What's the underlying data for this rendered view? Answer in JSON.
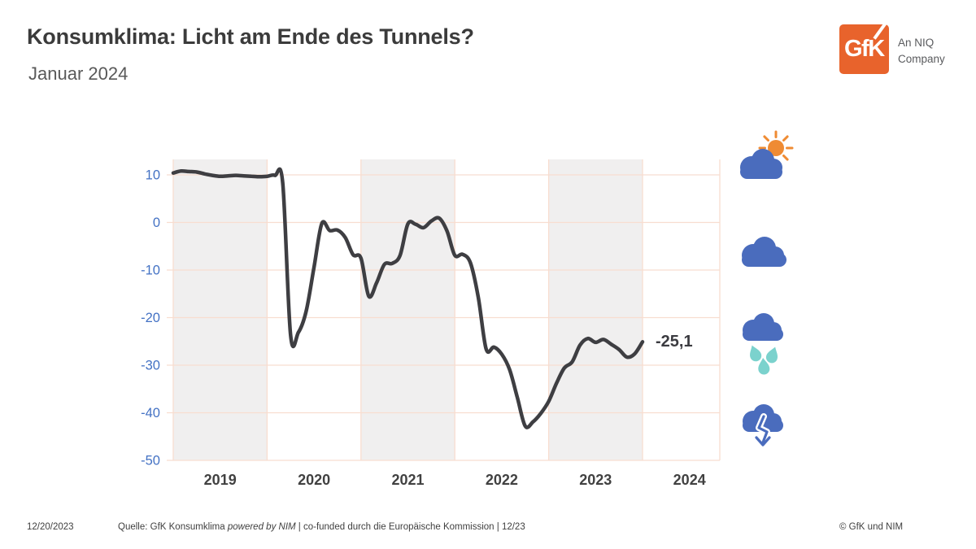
{
  "header": {
    "title": "Konsumklima: Licht am Ende des Tunnels?",
    "subtitle": "Januar 2024"
  },
  "logo": {
    "text": "GfK",
    "tagline_line1": "An NIQ",
    "tagline_line2": "Company",
    "orange": "#e8632c",
    "tagline_color": "#5a5b5e"
  },
  "chart_data": {
    "type": "line",
    "title": "",
    "xlabel": "",
    "ylabel": "",
    "frequency": "monthly",
    "x_start": "2019-01",
    "x_end": "2024-01",
    "x_labels": [
      "2019",
      "2020",
      "2021",
      "2022",
      "2023",
      "2024"
    ],
    "y_ticks": [
      10,
      0,
      -10,
      -20,
      -30,
      -40,
      -50
    ],
    "ylim": [
      -50,
      13
    ],
    "grid": "on",
    "shaded_years": [
      "2019",
      "2021",
      "2023"
    ],
    "series": [
      {
        "name": "GfK Konsumklima",
        "values": [
          10.4,
          10.8,
          10.7,
          10.6,
          10.2,
          9.9,
          9.7,
          9.8,
          9.9,
          9.8,
          9.7,
          9.6,
          9.7,
          9.9,
          8.3,
          -23.7,
          -23.1,
          -18.6,
          -9.4,
          -0.2,
          -1.7,
          -1.6,
          -3.2,
          -6.8,
          -7.5,
          -15.5,
          -12.7,
          -8.8,
          -8.6,
          -6.9,
          -0.3,
          -0.4,
          -1.1,
          0.3,
          0.9,
          -1.8,
          -6.9,
          -6.7,
          -8.5,
          -15.7,
          -26.6,
          -26.2,
          -27.7,
          -30.9,
          -36.8,
          -42.8,
          -41.9,
          -40.1,
          -37.6,
          -33.8,
          -30.6,
          -29.3,
          -25.8,
          -24.4,
          -25.2,
          -24.6,
          -25.6,
          -26.7,
          -28.3,
          -27.6,
          -25.1
        ]
      }
    ],
    "end_label": "-25,1",
    "line_color": "#3e3e42",
    "gridline_color": "#f8ddd0",
    "band_color": "#f0efef",
    "y_tick_color": "#4472c4",
    "x_tick_color": "#414141"
  },
  "weather_icons": [
    {
      "name": "partly-sunny-icon",
      "cloud_color": "#4a6cbd",
      "sun_color": "#ef8b33"
    },
    {
      "name": "cloudy-icon",
      "cloud_color": "#4a6cbd"
    },
    {
      "name": "rain-icon",
      "cloud_color": "#4a6cbd",
      "drop_color": "#7bd2cd"
    },
    {
      "name": "downturn-cloud-icon",
      "cloud_color": "#4a6cbd",
      "arrow_color": "#4a6cbd"
    }
  ],
  "footer": {
    "date": "12/20/2023",
    "source_prefix": "Quelle: GfK Konsumklima ",
    "source_italic": "powered by NIM",
    "source_suffix": " | co-funded durch die Europäische Kommission | 12/23",
    "copyright": "© GfK und NIM"
  }
}
